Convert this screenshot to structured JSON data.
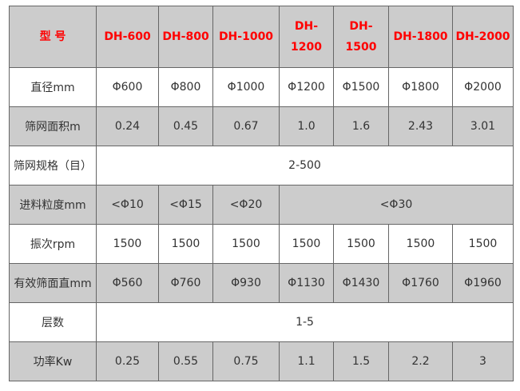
{
  "header": [
    "型 号",
    "DH-600",
    "DH-800",
    "DH-1000",
    "DH-1200",
    "DH-1500",
    "DH-1800",
    "DH-2000"
  ],
  "rows": [
    {
      "label": "直径mm",
      "cells": [
        "Φ600",
        "Φ800",
        "Φ1000",
        "Φ1200",
        "Φ1500",
        "Φ1800",
        "Φ2000"
      ]
    },
    {
      "label": "筛网面积m",
      "cells": [
        "0.24",
        "0.45",
        "0.67",
        "1.0",
        "1.6",
        "2.43",
        "3.01"
      ]
    },
    {
      "label": "筛网规格（目）",
      "merged": "2-500"
    },
    {
      "label": "进料粒度mm",
      "cells": [
        "<Φ10",
        "<Φ15",
        "<Φ20"
      ],
      "merged": "<Φ30"
    },
    {
      "label": "振次rpm",
      "cells": [
        "1500",
        "1500",
        "1500",
        "1500",
        "1500",
        "1500",
        "1500"
      ]
    },
    {
      "label": "有效筛面直mm",
      "cells": [
        "Φ560",
        "Φ760",
        "Φ930",
        "Φ1130",
        "Φ1430",
        "Φ1760",
        "Φ1960"
      ]
    },
    {
      "label": "层数",
      "merged": "1-5"
    },
    {
      "label": "功率Kw",
      "cells": [
        "0.25",
        "0.55",
        "0.75",
        "1.1",
        "1.5",
        "2.2",
        "3"
      ]
    }
  ],
  "colors": {
    "header_text": "#ff0000",
    "gray_bg": "#cccccc",
    "border": "#666666",
    "text": "#333333"
  }
}
